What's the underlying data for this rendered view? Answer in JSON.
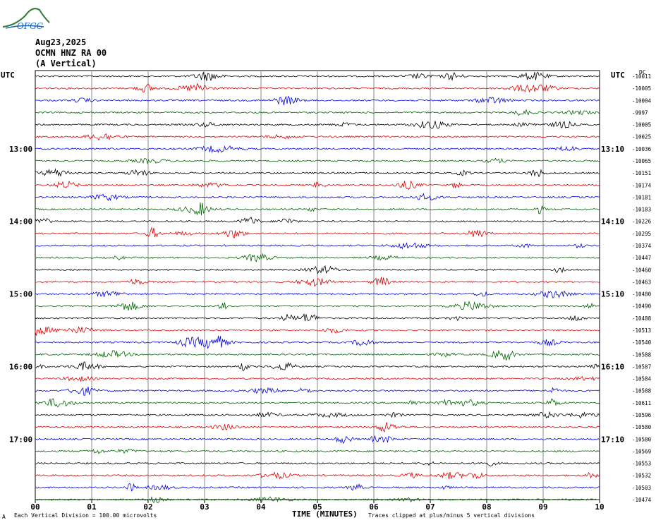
{
  "logo": {
    "text": "OFGC",
    "icon": "ofgc-volcano-logo"
  },
  "header": {
    "date": "Aug23,2025",
    "station": "OCMN HNZ RA 00",
    "component": "(A Vertical)"
  },
  "utc_left": "UTC",
  "utc_right": "UTC",
  "dc_label": "DC",
  "footer": {
    "scale": "Each Vertical Division =  100.00 microvolts",
    "clip": "Traces clipped at plus/minus 5 vertical divisions",
    "corner_mark": "A"
  },
  "chart_data": {
    "type": "line",
    "xlabel": "TIME (MINUTES)",
    "ylabel": "",
    "title": "",
    "xlim": [
      0,
      10
    ],
    "x_ticks": [
      "00",
      "01",
      "02",
      "03",
      "04",
      "05",
      "06",
      "07",
      "08",
      "09",
      "10"
    ],
    "left_hour_labels": [
      {
        "row": 6,
        "label": "13:00"
      },
      {
        "row": 12,
        "label": "14:00"
      },
      {
        "row": 18,
        "label": "15:00"
      },
      {
        "row": 24,
        "label": "16:00"
      },
      {
        "row": 30,
        "label": "17:00"
      }
    ],
    "right_hour_labels": [
      {
        "row": 6,
        "label": "13:10"
      },
      {
        "row": 12,
        "label": "14:10"
      },
      {
        "row": 18,
        "label": "15:10"
      },
      {
        "row": 24,
        "label": "16:10"
      },
      {
        "row": 30,
        "label": "17:10"
      }
    ],
    "trace_colors": [
      "#000000",
      "#e00000",
      "#0000e0",
      "#006400"
    ],
    "dc_offsets": [
      "-10011",
      "-10005",
      "-10004",
      "-9997",
      "-10005",
      "-10025",
      "-10036",
      "-10065",
      "-10151",
      "-10174",
      "-10181",
      "-10183",
      "-10226",
      "-10295",
      "-10374",
      "-10447",
      "-10460",
      "-10463",
      "-10480",
      "-10490",
      "-10488",
      "-10513",
      "-10540",
      "-10588",
      "-10587",
      "-10584",
      "-10588",
      "-10611",
      "-10596",
      "-10580",
      "-10580",
      "-10569",
      "-10553",
      "-10532",
      "-10503",
      "-10474"
    ],
    "grid": true
  }
}
